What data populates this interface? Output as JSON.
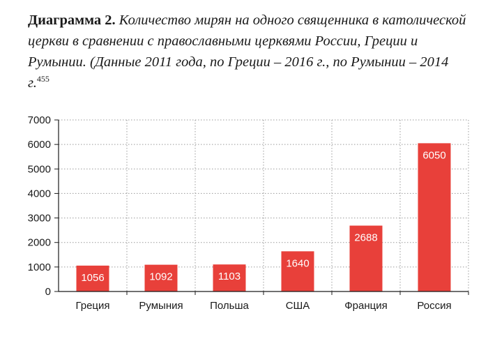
{
  "title": {
    "lead": "Диаграмма 2.",
    "text": "Количество мирян на одного священника в католической церкви в сравнении с православными церквями России, Греции и Румынии. (Данные 2011 года, по Греции – 2016 г., по Румынии – 2014 г.",
    "footnote": "455"
  },
  "chart_data": {
    "type": "bar",
    "categories": [
      "Греция",
      "Румыния",
      "Польша",
      "США",
      "Франция",
      "Россия"
    ],
    "values": [
      1056,
      1092,
      1103,
      1640,
      2688,
      6050
    ],
    "data_labels": [
      "1056",
      "1092",
      "1103",
      "1640",
      "2688",
      "6050"
    ],
    "y_ticks": [
      "0",
      "1000",
      "2000",
      "3000",
      "4000",
      "5000",
      "6000",
      "7000"
    ],
    "ylim": [
      0,
      7000
    ],
    "grid": true,
    "bar_color": "#e8403a"
  }
}
